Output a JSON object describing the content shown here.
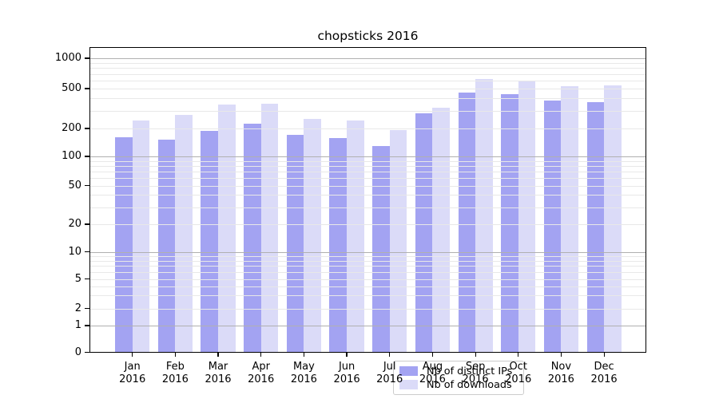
{
  "title": "chopsticks 2016",
  "chart_data": {
    "type": "bar",
    "title": "chopsticks 2016",
    "categories": [
      "Jan",
      "Feb",
      "Mar",
      "Apr",
      "May",
      "Jun",
      "Jul",
      "Aug",
      "Sep",
      "Oct",
      "Nov",
      "Dec"
    ],
    "category_year": "2016",
    "series": [
      {
        "name": "Nb of distinct IPs",
        "color": "#a3a3f2",
        "values": [
          160,
          152,
          187,
          223,
          170,
          157,
          129,
          282,
          458,
          437,
          382,
          368
        ]
      },
      {
        "name": "Nb of downloads",
        "color": "#dbdbf8",
        "values": [
          241,
          272,
          346,
          353,
          249,
          241,
          191,
          322,
          620,
          605,
          524,
          541
        ]
      }
    ],
    "yscale": "symlog",
    "yticks": [
      0,
      1,
      2,
      5,
      10,
      20,
      50,
      100,
      200,
      500,
      1000
    ],
    "ylim": [
      0,
      1300
    ],
    "xlabel": "",
    "ylabel": "",
    "grid": true,
    "grid_major_values": [
      1,
      10,
      100,
      1000
    ],
    "legend_position": "lower-center-inside",
    "colors": {
      "major_grid": "#b0b0b0",
      "minor_grid": "#e8e8e8",
      "spine": "#000000",
      "background": "#ffffff"
    }
  }
}
